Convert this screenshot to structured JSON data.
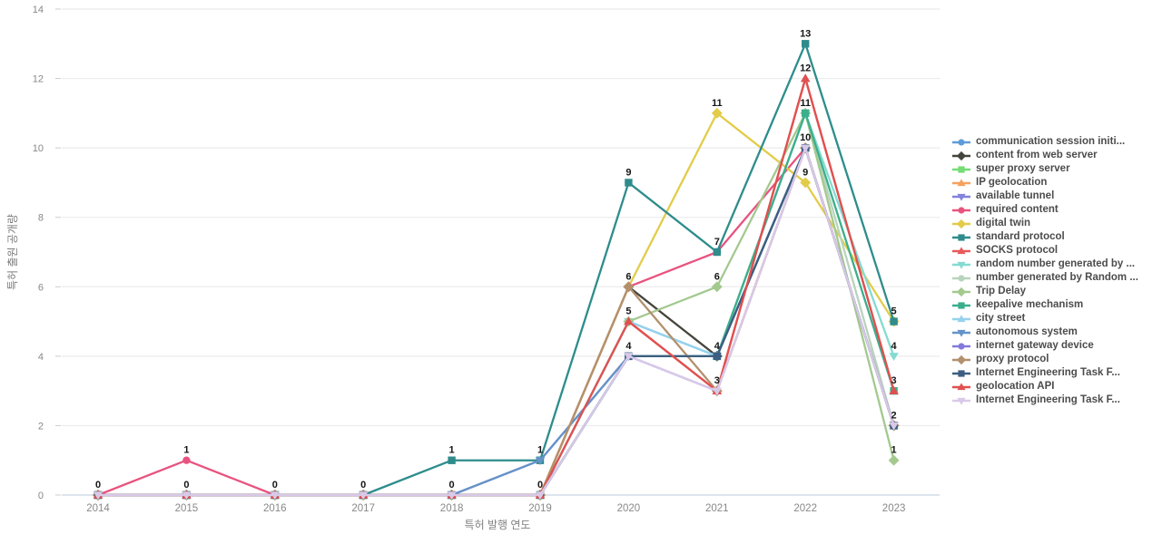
{
  "chart_data": {
    "type": "line",
    "title": "",
    "xlabel": "특허 발행 연도",
    "ylabel": "특허 출원 공개량",
    "x": [
      2014,
      2015,
      2016,
      2017,
      2018,
      2019,
      2020,
      2021,
      2022,
      2023
    ],
    "ylim": [
      0,
      14
    ],
    "yticks": [
      0,
      2,
      4,
      6,
      8,
      10,
      12,
      14
    ],
    "grid": true,
    "legend_position": "right",
    "axis_colors": {
      "grid": "#ebebeb",
      "zeroline": "#c8d4e3",
      "tick_text": "#888888",
      "axis_title": "#7f7f7f",
      "point_label": "#151515"
    },
    "series": [
      {
        "name": "communication session initi...",
        "color": "#5e9cd9",
        "shape": "circle",
        "values": [
          0,
          0,
          0,
          0,
          0,
          0,
          5,
          4,
          10,
          2
        ]
      },
      {
        "name": "content from web server",
        "color": "#44443c",
        "shape": "diamond",
        "values": [
          0,
          0,
          0,
          0,
          0,
          0,
          6,
          4,
          10,
          2
        ]
      },
      {
        "name": "super proxy server",
        "color": "#74dd74",
        "shape": "square",
        "values": [
          0,
          0,
          0,
          0,
          0,
          0,
          4,
          4,
          10,
          2
        ]
      },
      {
        "name": "IP geolocation",
        "color": "#f5a15f",
        "shape": "triangle-up",
        "values": [
          0,
          0,
          0,
          0,
          0,
          0,
          5,
          3,
          10,
          2
        ]
      },
      {
        "name": "available tunnel",
        "color": "#8183dc",
        "shape": "triangle-down",
        "values": [
          0,
          0,
          0,
          0,
          0,
          1,
          4,
          4,
          10,
          2
        ]
      },
      {
        "name": "required content",
        "color": "#e8537f",
        "shape": "circle",
        "values": [
          0,
          1,
          0,
          0,
          0,
          0,
          6,
          7,
          10,
          2
        ]
      },
      {
        "name": "digital twin",
        "color": "#e2cc49",
        "shape": "diamond",
        "values": [
          0,
          0,
          0,
          0,
          0,
          0,
          6,
          11,
          9,
          5
        ]
      },
      {
        "name": "standard protocol",
        "color": "#2e8c8c",
        "shape": "square",
        "values": [
          0,
          0,
          0,
          0,
          1,
          1,
          9,
          7,
          13,
          5
        ]
      },
      {
        "name": "SOCKS protocol",
        "color": "#e85a5a",
        "shape": "triangle-up",
        "values": [
          0,
          0,
          0,
          0,
          0,
          0,
          5,
          3,
          12,
          3
        ]
      },
      {
        "name": "random number generated by ...",
        "color": "#85dbd1",
        "shape": "triangle-down",
        "values": [
          0,
          0,
          0,
          0,
          0,
          0,
          5,
          4,
          11,
          4
        ]
      },
      {
        "name": "number generated by Random ...",
        "color": "#b8d4bc",
        "shape": "circle",
        "values": [
          0,
          0,
          0,
          0,
          0,
          0,
          4,
          4,
          11,
          2
        ]
      },
      {
        "name": "Trip Delay",
        "color": "#a3c98f",
        "shape": "diamond",
        "values": [
          0,
          0,
          0,
          0,
          0,
          0,
          5,
          6,
          11,
          1
        ]
      },
      {
        "name": "keepalive mechanism",
        "color": "#3bae8c",
        "shape": "square",
        "values": [
          0,
          0,
          0,
          0,
          0,
          0,
          4,
          4,
          11,
          3
        ]
      },
      {
        "name": "city street",
        "color": "#96d2ee",
        "shape": "triangle-up",
        "values": [
          0,
          0,
          0,
          0,
          0,
          0,
          5,
          4,
          10,
          2
        ]
      },
      {
        "name": "autonomous system",
        "color": "#6593c8",
        "shape": "triangle-down",
        "values": [
          0,
          0,
          0,
          0,
          0,
          1,
          4,
          4,
          10,
          2
        ]
      },
      {
        "name": "internet gateway device",
        "color": "#8379db",
        "shape": "circle",
        "values": [
          0,
          0,
          0,
          0,
          0,
          0,
          4,
          3,
          10,
          2
        ]
      },
      {
        "name": "proxy protocol",
        "color": "#b3906d",
        "shape": "diamond",
        "values": [
          0,
          0,
          0,
          0,
          0,
          0,
          6,
          3,
          10,
          2
        ]
      },
      {
        "name": "Internet Engineering Task F...",
        "color": "#3d5e80",
        "shape": "square",
        "values": [
          0,
          0,
          0,
          0,
          0,
          0,
          4,
          4,
          10,
          2
        ]
      },
      {
        "name": "geolocation API",
        "color": "#e05050",
        "shape": "triangle-up",
        "values": [
          0,
          0,
          0,
          0,
          0,
          0,
          5,
          3,
          12,
          3
        ]
      },
      {
        "name": "Internet Engineering Task F...",
        "color": "#d9c9e8",
        "shape": "triangle-down",
        "values": [
          0,
          0,
          0,
          0,
          0,
          0,
          4,
          3,
          10,
          2
        ]
      }
    ],
    "point_labels": [
      {
        "year": 2014,
        "value": 0,
        "text": "0"
      },
      {
        "year": 2015,
        "value": 1,
        "text": "1"
      },
      {
        "year": 2015,
        "value": 0,
        "text": "0"
      },
      {
        "year": 2016,
        "value": 0,
        "text": "0"
      },
      {
        "year": 2017,
        "value": 0,
        "text": "0"
      },
      {
        "year": 2018,
        "value": 1,
        "text": "1"
      },
      {
        "year": 2018,
        "value": 0,
        "text": "0"
      },
      {
        "year": 2019,
        "value": 1,
        "text": "1"
      },
      {
        "year": 2019,
        "value": 0,
        "text": "0"
      },
      {
        "year": 2020,
        "value": 9,
        "text": "9"
      },
      {
        "year": 2020,
        "value": 6,
        "text": "6"
      },
      {
        "year": 2020,
        "value": 5,
        "text": "5"
      },
      {
        "year": 2020,
        "value": 4,
        "text": "4"
      },
      {
        "year": 2021,
        "value": 11,
        "text": "11"
      },
      {
        "year": 2021,
        "value": 7,
        "text": "7"
      },
      {
        "year": 2021,
        "value": 6,
        "text": "6"
      },
      {
        "year": 2021,
        "value": 4,
        "text": "4"
      },
      {
        "year": 2021,
        "value": 3,
        "text": "3"
      },
      {
        "year": 2022,
        "value": 13,
        "text": "13"
      },
      {
        "year": 2022,
        "value": 12,
        "text": "12"
      },
      {
        "year": 2022,
        "value": 11,
        "text": "11"
      },
      {
        "year": 2022,
        "value": 10,
        "text": "10"
      },
      {
        "year": 2022,
        "value": 9,
        "text": "9"
      },
      {
        "year": 2023,
        "value": 5,
        "text": "5"
      },
      {
        "year": 2023,
        "value": 4,
        "text": "4"
      },
      {
        "year": 2023,
        "value": 3,
        "text": "3"
      },
      {
        "year": 2023,
        "value": 2,
        "text": "2"
      },
      {
        "year": 2023,
        "value": 1,
        "text": "1"
      }
    ]
  }
}
